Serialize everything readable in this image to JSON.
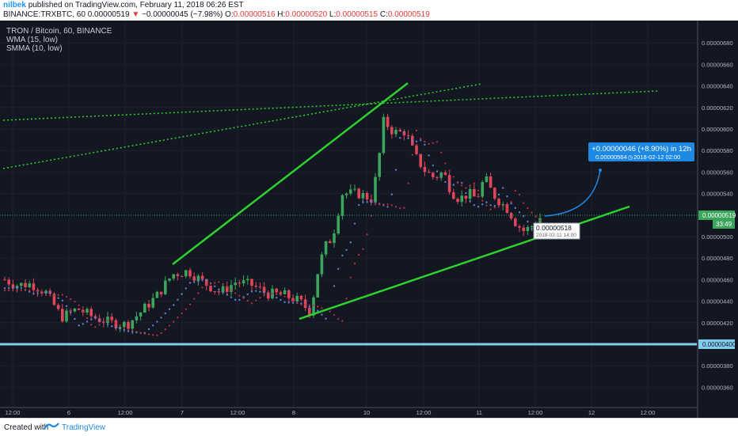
{
  "header": {
    "user": "nilbek",
    "published": "published on TradingView.com, February 11, 2018 06:26 EST",
    "symbol": "BINANCE:TRXBTC, 60",
    "price": "0.00000519",
    "change_arrow": "▼",
    "change": "−0.00000045 (−7.98%)",
    "o_label": "O:",
    "o": "0.00000516",
    "h_label": "H:",
    "h": "0.00000520",
    "l_label": "L:",
    "l": "0.00000515",
    "c_label": "C:",
    "c": "0.00000519"
  },
  "legend": {
    "title": "TRON / Bitcoin, 60, BINANCE",
    "wma": "WMA (15, low)",
    "smma": "SMMA (10, low)"
  },
  "y_axis": {
    "ticks": [
      "0.00000680",
      "0.00000660",
      "0.00000640",
      "0.00000620",
      "0.00000600",
      "0.00000580",
      "0.00000560",
      "0.00000540",
      "0.00000500",
      "0.00000480",
      "0.00000460",
      "0.00000440",
      "0.00000420",
      "0.00000380",
      "0.00000360"
    ],
    "current_price": "0.00000519",
    "countdown": "33:49",
    "support_price": "0.00000400"
  },
  "x_axis": {
    "ticks": [
      "12:00",
      "6",
      "12:00",
      "7",
      "12:00",
      "8",
      "10",
      "12:00",
      "11",
      "12:00",
      "12",
      "12:00"
    ]
  },
  "projection": {
    "line1": "+0.00000046 (+8.90%) in 12h",
    "line2": "0.00000564",
    "line3": "2018-02-12  02:00"
  },
  "marker": {
    "price": "0.00000518",
    "time": "2018-02-11 14:00"
  },
  "colors": {
    "background": "#131722",
    "up_candle": "#3ba55c",
    "down_candle": "#e0455a",
    "trendline": "#2ed12e",
    "support_line": "#7fcdf0",
    "projection": "#1e88e5",
    "wma": "#5c7fd6",
    "smma": "#c62f3e"
  },
  "footer": {
    "created_with": "Created with",
    "brand": "TradingView"
  }
}
